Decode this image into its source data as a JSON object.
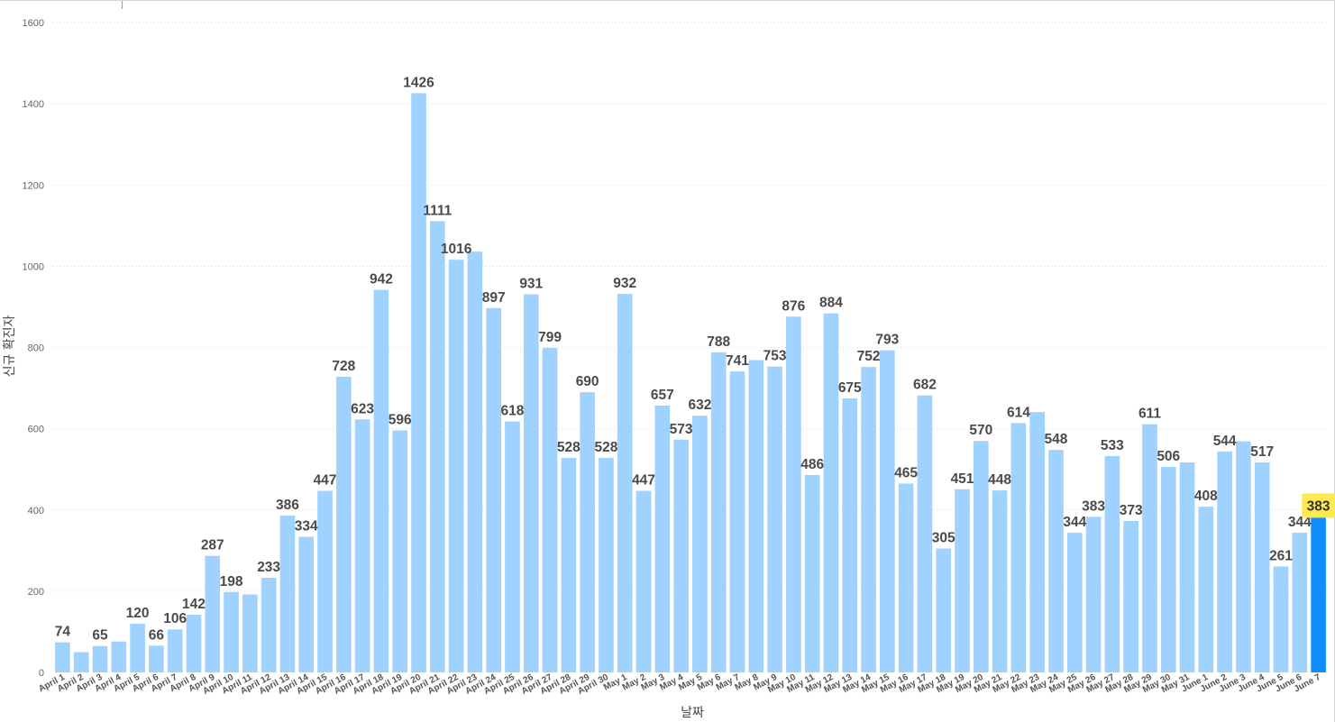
{
  "chart_data": {
    "type": "bar",
    "title": "",
    "xlabel": "날짜",
    "ylabel": "신규 확진자",
    "ylim": [
      0,
      1600
    ],
    "yticks": [
      0,
      200,
      400,
      600,
      800,
      1000,
      1200,
      1400,
      1600
    ],
    "grid": true,
    "legend": "none",
    "categories": [
      "April 1",
      "April 2",
      "April 3",
      "April 4",
      "April 5",
      "April 6",
      "April 7",
      "April 8",
      "April 9",
      "April 10",
      "April 11",
      "April 12",
      "April 13",
      "April 14",
      "April 15",
      "April 16",
      "April 17",
      "April 18",
      "April 19",
      "April 20",
      "April 21",
      "April 22",
      "April 23",
      "April 24",
      "April 25",
      "April 26",
      "April 27",
      "April 28",
      "April 29",
      "April 30",
      "May 1",
      "May 2",
      "May 3",
      "May 4",
      "May 5",
      "May 6",
      "May 7",
      "May 8",
      "May 9",
      "May 10",
      "May 11",
      "May 12",
      "May 13",
      "May 14",
      "May 15",
      "May 16",
      "May 17",
      "May 18",
      "May 19",
      "May 20",
      "May 21",
      "May 22",
      "May 23",
      "May 24",
      "May 25",
      "May 26",
      "May 27",
      "May 28",
      "May 29",
      "May 30",
      "May 31",
      "June 1",
      "June 2",
      "June 3",
      "June 4",
      "June 5",
      "June 6",
      "June 7"
    ],
    "values": [
      74,
      50,
      65,
      76,
      120,
      66,
      106,
      142,
      287,
      198,
      192,
      233,
      386,
      334,
      447,
      728,
      623,
      942,
      596,
      1426,
      1111,
      1016,
      1036,
      897,
      618,
      931,
      799,
      528,
      690,
      528,
      932,
      447,
      657,
      573,
      632,
      788,
      741,
      769,
      753,
      876,
      486,
      884,
      675,
      752,
      793,
      465,
      682,
      305,
      451,
      570,
      448,
      614,
      641,
      548,
      344,
      383,
      533,
      373,
      611,
      506,
      517,
      408,
      544,
      569,
      517,
      261,
      344,
      383
    ],
    "data_labels": [
      "74",
      "",
      "65",
      "",
      "120",
      "66",
      "106",
      "142",
      "287",
      "198",
      "",
      "233",
      "386",
      "334",
      "447",
      "728",
      "623",
      "942",
      "596",
      "1426",
      "1111",
      "1016",
      "",
      "897",
      "618",
      "931",
      "799",
      "528",
      "690",
      "528",
      "932",
      "447",
      "657",
      "573",
      "632",
      "788",
      "741",
      "",
      "753",
      "876",
      "486",
      "884",
      "675",
      "752",
      "793",
      "465",
      "682",
      "305",
      "451",
      "570",
      "448",
      "614",
      "",
      "548",
      "344",
      "383",
      "533",
      "373",
      "611",
      "506",
      "",
      "408",
      "544",
      "",
      "517",
      "261",
      "344",
      "383"
    ],
    "highlight_index": 67,
    "colors": {
      "bar": "#9fd2ff",
      "bar_highlight": "#118dff",
      "label_highlight_bg": "#ffe94f",
      "gridline": "#d9d9d9"
    }
  }
}
